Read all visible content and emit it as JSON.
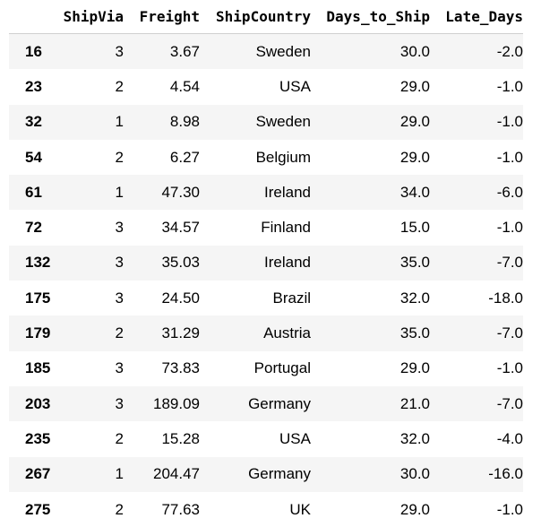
{
  "table": {
    "columns": [
      "ShipVia",
      "Freight",
      "ShipCountry",
      "Days_to_Ship",
      "Late_Days"
    ],
    "rows": [
      {
        "index": "16",
        "ShipVia": "3",
        "Freight": "3.67",
        "ShipCountry": "Sweden",
        "Days_to_Ship": "30.0",
        "Late_Days": "-2.0"
      },
      {
        "index": "23",
        "ShipVia": "2",
        "Freight": "4.54",
        "ShipCountry": "USA",
        "Days_to_Ship": "29.0",
        "Late_Days": "-1.0"
      },
      {
        "index": "32",
        "ShipVia": "1",
        "Freight": "8.98",
        "ShipCountry": "Sweden",
        "Days_to_Ship": "29.0",
        "Late_Days": "-1.0"
      },
      {
        "index": "54",
        "ShipVia": "2",
        "Freight": "6.27",
        "ShipCountry": "Belgium",
        "Days_to_Ship": "29.0",
        "Late_Days": "-1.0"
      },
      {
        "index": "61",
        "ShipVia": "1",
        "Freight": "47.30",
        "ShipCountry": "Ireland",
        "Days_to_Ship": "34.0",
        "Late_Days": "-6.0"
      },
      {
        "index": "72",
        "ShipVia": "3",
        "Freight": "34.57",
        "ShipCountry": "Finland",
        "Days_to_Ship": "15.0",
        "Late_Days": "-1.0"
      },
      {
        "index": "132",
        "ShipVia": "3",
        "Freight": "35.03",
        "ShipCountry": "Ireland",
        "Days_to_Ship": "35.0",
        "Late_Days": "-7.0"
      },
      {
        "index": "175",
        "ShipVia": "3",
        "Freight": "24.50",
        "ShipCountry": "Brazil",
        "Days_to_Ship": "32.0",
        "Late_Days": "-18.0"
      },
      {
        "index": "179",
        "ShipVia": "2",
        "Freight": "31.29",
        "ShipCountry": "Austria",
        "Days_to_Ship": "35.0",
        "Late_Days": "-7.0"
      },
      {
        "index": "185",
        "ShipVia": "3",
        "Freight": "73.83",
        "ShipCountry": "Portugal",
        "Days_to_Ship": "29.0",
        "Late_Days": "-1.0"
      },
      {
        "index": "203",
        "ShipVia": "3",
        "Freight": "189.09",
        "ShipCountry": "Germany",
        "Days_to_Ship": "21.0",
        "Late_Days": "-7.0"
      },
      {
        "index": "235",
        "ShipVia": "2",
        "Freight": "15.28",
        "ShipCountry": "USA",
        "Days_to_Ship": "32.0",
        "Late_Days": "-4.0"
      },
      {
        "index": "267",
        "ShipVia": "1",
        "Freight": "204.47",
        "ShipCountry": "Germany",
        "Days_to_Ship": "30.0",
        "Late_Days": "-16.0"
      },
      {
        "index": "275",
        "ShipVia": "2",
        "Freight": "77.63",
        "ShipCountry": "UK",
        "Days_to_Ship": "29.0",
        "Late_Days": "-1.0"
      }
    ]
  }
}
